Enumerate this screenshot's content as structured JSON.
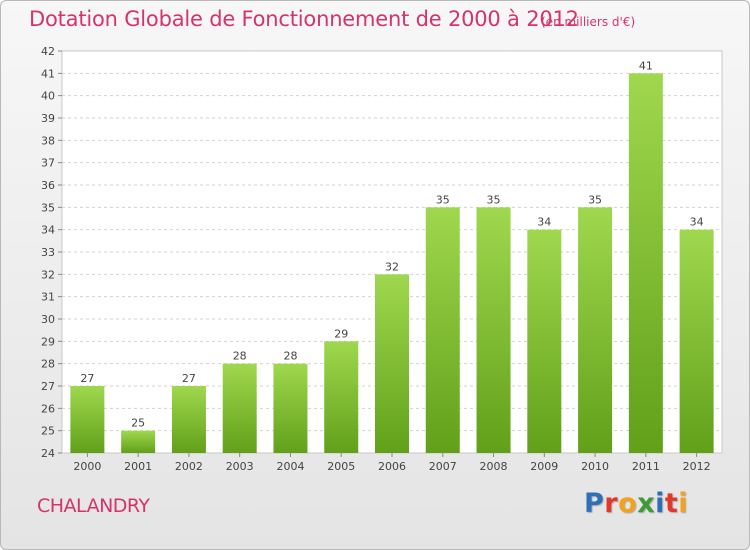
{
  "title": "Dotation Globale de Fonctionnement de 2000 à 2012",
  "subtitle": "(en milliers d'€)",
  "commune": "CHALANDRY",
  "logo": {
    "letters": [
      {
        "char": "P",
        "color": "#2f6fb6"
      },
      {
        "char": "r",
        "color": "#e0392b"
      },
      {
        "char": "o",
        "color": "#f2a21c"
      },
      {
        "char": "x",
        "color": "#3d9b35"
      },
      {
        "char": "i",
        "color": "#2f6fb6"
      },
      {
        "char": "t",
        "color": "#e0392b"
      },
      {
        "char": "i",
        "color": "#f2a21c"
      }
    ]
  },
  "colors": {
    "accent": "#d6336c",
    "bar_top": "#9fd84e",
    "bar_bottom": "#62a01a"
  },
  "chart_data": {
    "type": "bar",
    "categories": [
      "2000",
      "2001",
      "2002",
      "2003",
      "2004",
      "2005",
      "2006",
      "2007",
      "2008",
      "2009",
      "2010",
      "2011",
      "2012"
    ],
    "values": [
      27,
      25,
      27,
      28,
      28,
      29,
      32,
      35,
      35,
      34,
      35,
      41,
      34
    ],
    "title": "Dotation Globale de Fonctionnement de 2000 à 2012",
    "subtitle": "(en milliers d'€)",
    "ylim": [
      24,
      42
    ],
    "yticks": [
      24,
      25,
      26,
      27,
      28,
      29,
      30,
      31,
      32,
      33,
      34,
      35,
      36,
      37,
      38,
      39,
      40,
      41,
      42
    ],
    "grid": true,
    "legend": "none"
  }
}
